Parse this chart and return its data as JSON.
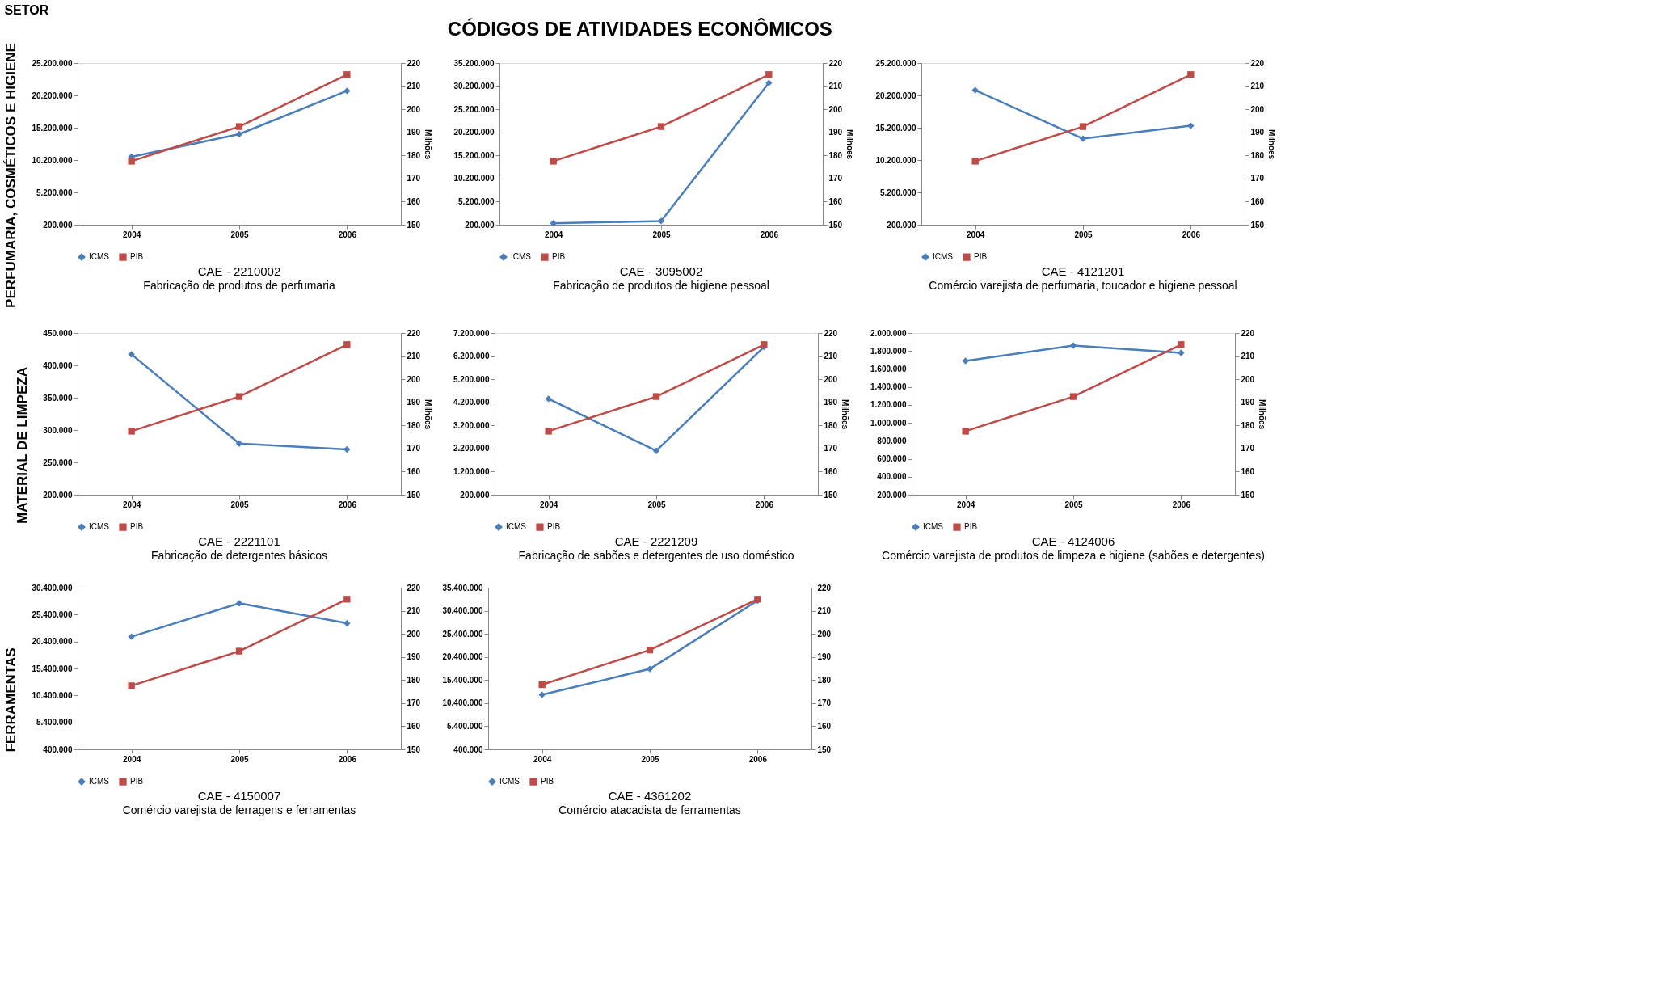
{
  "chart_data": [
    {
      "type": "line",
      "title": "CAE - 2210002",
      "subtitle": "Fabricação de produtos de perfumaria",
      "y2label": "Milhões",
      "categories": [
        "2004",
        "2005",
        "2006"
      ],
      "ylim": [
        200000,
        25200000
      ],
      "yticks": [
        {
          "value": 200000,
          "label": "200.000"
        },
        {
          "value": 5200000,
          "label": "5.200.000"
        },
        {
          "value": 10200000,
          "label": "10.200.000"
        },
        {
          "value": 15200000,
          "label": "15.200.000"
        },
        {
          "value": 20200000,
          "label": "20.200.000"
        },
        {
          "value": 25200000,
          "label": "25.200.000"
        }
      ],
      "y2lim": [
        150,
        220
      ],
      "y2ticks": [
        150,
        160,
        170,
        180,
        190,
        200,
        210,
        220
      ],
      "legend": "bottom",
      "grid": false,
      "series": [
        {
          "name": "ICMS",
          "color": "#4a7ebb",
          "marker": "diamond",
          "values": [
            10700000,
            14200000,
            20900000
          ]
        },
        {
          "name": "PIB",
          "color": "#be4b48",
          "marker": "square",
          "axis": "y2",
          "values": [
            177.5,
            192.5,
            215
          ]
        }
      ]
    },
    {
      "type": "line",
      "title": "CAE - 3095002",
      "subtitle": "Fabricação de produtos de higiene pessoal",
      "y2label": "Milhões",
      "categories": [
        "2004",
        "2005",
        "2006"
      ],
      "ylim": [
        200000,
        35200000
      ],
      "yticks": [
        {
          "value": 200000,
          "label": "200.000"
        },
        {
          "value": 5200000,
          "label": "5.200.000"
        },
        {
          "value": 10200000,
          "label": "10.200.000"
        },
        {
          "value": 15200000,
          "label": "15.200.000"
        },
        {
          "value": 20200000,
          "label": "20.200.000"
        },
        {
          "value": 25200000,
          "label": "25.200.000"
        },
        {
          "value": 30200000,
          "label": "30.200.000"
        },
        {
          "value": 35200000,
          "label": "35.200.000"
        }
      ],
      "y2lim": [
        150,
        220
      ],
      "y2ticks": [
        150,
        160,
        170,
        180,
        190,
        200,
        210,
        220
      ],
      "legend": "bottom",
      "grid": false,
      "series": [
        {
          "name": "ICMS",
          "color": "#4a7ebb",
          "marker": "diamond",
          "values": [
            500000,
            1000000,
            30900000
          ]
        },
        {
          "name": "PIB",
          "color": "#be4b48",
          "marker": "square",
          "axis": "y2",
          "values": [
            177.5,
            192.5,
            215
          ]
        }
      ]
    },
    {
      "type": "line",
      "title": "CAE - 4121201",
      "subtitle": "Comércio varejista de perfumaria, toucador e higiene pessoal",
      "y2label": "Milhões",
      "categories": [
        "2004",
        "2005",
        "2006"
      ],
      "ylim": [
        200000,
        25200000
      ],
      "yticks": [
        {
          "value": 200000,
          "label": "200.000"
        },
        {
          "value": 5200000,
          "label": "5.200.000"
        },
        {
          "value": 10200000,
          "label": "10.200.000"
        },
        {
          "value": 15200000,
          "label": "15.200.000"
        },
        {
          "value": 20200000,
          "label": "20.200.000"
        },
        {
          "value": 25200000,
          "label": "25.200.000"
        }
      ],
      "y2lim": [
        150,
        220
      ],
      "y2ticks": [
        150,
        160,
        170,
        180,
        190,
        200,
        210,
        220
      ],
      "legend": "bottom",
      "grid": false,
      "series": [
        {
          "name": "ICMS",
          "color": "#4a7ebb",
          "marker": "diamond",
          "values": [
            21000000,
            13500000,
            15500000
          ]
        },
        {
          "name": "PIB",
          "color": "#be4b48",
          "marker": "square",
          "axis": "y2",
          "values": [
            177.5,
            192.5,
            215
          ]
        }
      ]
    },
    {
      "type": "line",
      "title": "CAE - 2221101",
      "subtitle": "Fabricação de detergentes básicos",
      "y2label": "Milhões",
      "categories": [
        "2004",
        "2005",
        "2006"
      ],
      "ylim": [
        200000,
        450000
      ],
      "yticks": [
        {
          "value": 200000,
          "label": "200.000"
        },
        {
          "value": 250000,
          "label": "250.000"
        },
        {
          "value": 300000,
          "label": "300.000"
        },
        {
          "value": 350000,
          "label": "350.000"
        },
        {
          "value": 400000,
          "label": "400.000"
        },
        {
          "value": 450000,
          "label": "450.000"
        }
      ],
      "y2lim": [
        150,
        220
      ],
      "y2ticks": [
        150,
        160,
        170,
        180,
        190,
        200,
        210,
        220
      ],
      "legend": "bottom",
      "grid": false,
      "series": [
        {
          "name": "ICMS",
          "color": "#4a7ebb",
          "marker": "diamond",
          "values": [
            417000,
            279000,
            270000
          ]
        },
        {
          "name": "PIB",
          "color": "#be4b48",
          "marker": "square",
          "axis": "y2",
          "values": [
            177.5,
            192.5,
            215
          ]
        }
      ]
    },
    {
      "type": "line",
      "title": "CAE - 2221209",
      "subtitle": "Fabricação de sabões e detergentes de uso doméstico",
      "y2label": "Milhões",
      "categories": [
        "2004",
        "2005",
        "2006"
      ],
      "ylim": [
        200000,
        7200000
      ],
      "yticks": [
        {
          "value": 200000,
          "label": "200.000"
        },
        {
          "value": 1200000,
          "label": "1.200.000"
        },
        {
          "value": 2200000,
          "label": "2.200.000"
        },
        {
          "value": 3200000,
          "label": "3.200.000"
        },
        {
          "value": 4200000,
          "label": "4.200.000"
        },
        {
          "value": 5200000,
          "label": "5.200.000"
        },
        {
          "value": 6200000,
          "label": "6.200.000"
        },
        {
          "value": 7200000,
          "label": "7.200.000"
        }
      ],
      "y2lim": [
        150,
        220
      ],
      "y2ticks": [
        150,
        160,
        170,
        180,
        190,
        200,
        210,
        220
      ],
      "legend": "bottom",
      "grid": false,
      "series": [
        {
          "name": "ICMS",
          "color": "#4a7ebb",
          "marker": "diamond",
          "values": [
            4350000,
            2100000,
            6600000
          ]
        },
        {
          "name": "PIB",
          "color": "#be4b48",
          "marker": "square",
          "axis": "y2",
          "values": [
            177.5,
            192.5,
            215
          ]
        }
      ]
    },
    {
      "type": "line",
      "title": "CAE - 4124006",
      "subtitle": "Comércio varejista de produtos de limpeza e higiene (sabões e detergentes)",
      "y2label": "Milhões",
      "categories": [
        "2004",
        "2005",
        "2006"
      ],
      "ylim": [
        200000,
        2000000
      ],
      "yticks": [
        {
          "value": 200000,
          "label": "200.000"
        },
        {
          "value": 400000,
          "label": "400.000"
        },
        {
          "value": 600000,
          "label": "600.000"
        },
        {
          "value": 800000,
          "label": "800.000"
        },
        {
          "value": 1000000,
          "label": "1.000.000"
        },
        {
          "value": 1200000,
          "label": "1.200.000"
        },
        {
          "value": 1400000,
          "label": "1.400.000"
        },
        {
          "value": 1600000,
          "label": "1.600.000"
        },
        {
          "value": 1800000,
          "label": "1.800.000"
        },
        {
          "value": 2000000,
          "label": "2.000.000"
        }
      ],
      "y2lim": [
        150,
        220
      ],
      "y2ticks": [
        150,
        160,
        170,
        180,
        190,
        200,
        210,
        220
      ],
      "legend": "bottom",
      "grid": false,
      "series": [
        {
          "name": "ICMS",
          "color": "#4a7ebb",
          "marker": "diamond",
          "values": [
            1690000,
            1860000,
            1780000
          ]
        },
        {
          "name": "PIB",
          "color": "#be4b48",
          "marker": "square",
          "axis": "y2",
          "values": [
            177.5,
            192.5,
            215
          ]
        }
      ]
    },
    {
      "type": "line",
      "title": "CAE - 4150007",
      "subtitle": "Comércio varejista de ferragens e ferramentas",
      "categories": [
        "2004",
        "2005",
        "2006"
      ],
      "ylim": [
        400000,
        30400000
      ],
      "yticks": [
        {
          "value": 400000,
          "label": "400.000"
        },
        {
          "value": 5400000,
          "label": "5.400.000"
        },
        {
          "value": 10400000,
          "label": "10.400.000"
        },
        {
          "value": 15400000,
          "label": "15.400.000"
        },
        {
          "value": 20400000,
          "label": "20.400.000"
        },
        {
          "value": 25400000,
          "label": "25.400.000"
        },
        {
          "value": 30400000,
          "label": "30.400.000"
        }
      ],
      "y2lim": [
        150,
        220
      ],
      "y2ticks": [
        150,
        160,
        170,
        180,
        190,
        200,
        210,
        220
      ],
      "legend": "bottom",
      "grid": false,
      "series": [
        {
          "name": "ICMS",
          "color": "#4a7ebb",
          "marker": "diamond",
          "values": [
            21300000,
            27500000,
            23800000
          ]
        },
        {
          "name": "PIB",
          "color": "#be4b48",
          "marker": "square",
          "axis": "y2",
          "values": [
            177.5,
            192.5,
            215
          ]
        }
      ]
    },
    {
      "type": "line",
      "title": "CAE - 4361202",
      "subtitle": "Comércio atacadista de ferramentas",
      "categories": [
        "2004",
        "2005",
        "2006"
      ],
      "ylim": [
        400000,
        35400000
      ],
      "yticks": [
        {
          "value": 400000,
          "label": "400.000"
        },
        {
          "value": 5400000,
          "label": "5.400.000"
        },
        {
          "value": 10400000,
          "label": "10.400.000"
        },
        {
          "value": 15400000,
          "label": "15.400.000"
        },
        {
          "value": 20400000,
          "label": "20.400.000"
        },
        {
          "value": 25400000,
          "label": "25.400.000"
        },
        {
          "value": 30400000,
          "label": "30.400.000"
        },
        {
          "value": 35400000,
          "label": "35.400.000"
        }
      ],
      "y2lim": [
        150,
        220
      ],
      "y2ticks": [
        150,
        160,
        170,
        180,
        190,
        200,
        210,
        220
      ],
      "legend": "bottom",
      "grid": false,
      "series": [
        {
          "name": "ICMS",
          "color": "#4a7ebb",
          "marker": "diamond",
          "values": [
            12200000,
            17800000,
            32600000
          ]
        },
        {
          "name": "PIB",
          "color": "#be4b48",
          "marker": "square",
          "axis": "y2",
          "values": [
            178,
            193,
            215
          ]
        }
      ]
    },
    {
      "type": "other",
      "title": "CÓDIGOS DE ATIVIDADES ECONÔMICOS",
      "annotations": [
        "SETOR",
        "PERFUMARIA, COSMÉTICOS E HIGIENE",
        "MATERIAL DE LIMPEZA",
        "FERRAMENTAS"
      ]
    }
  ]
}
